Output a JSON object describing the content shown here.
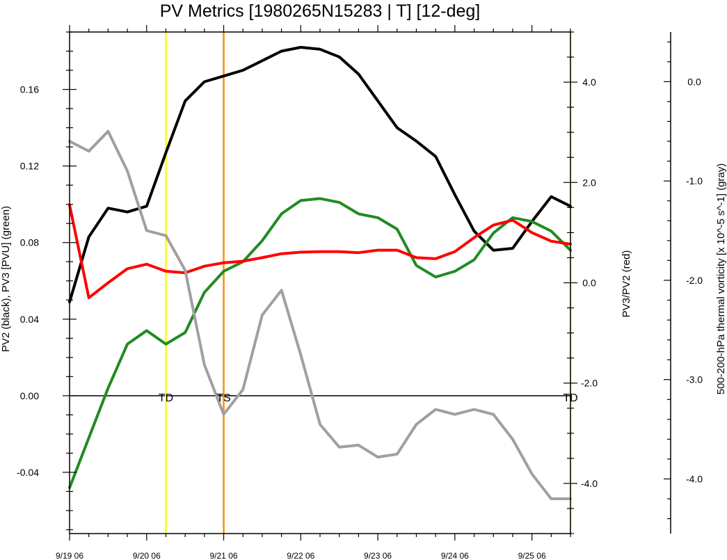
{
  "chart_data": {
    "type": "line",
    "title": "PV Metrics [1980265N15283 | T] [12-deg]",
    "ylabel_left": "PV2 (black), PV3 [PVU] (green)",
    "ylabel_right": "PV3/PV2 (red)",
    "ylabel_far_right": "500-200-hPa thermal vorticity [x 10^-5 s^-1] (gray)",
    "x_tick_labels": [
      "9/19 06",
      "9/20 06",
      "9/21 06",
      "9/22 06",
      "9/23 06",
      "9/24 06",
      "9/25 06"
    ],
    "x_tick_index": [
      0,
      4,
      8,
      12,
      16,
      20,
      24
    ],
    "xlim": [
      0,
      26
    ],
    "ylim_left": [
      -0.072,
      0.19
    ],
    "ylim_right": [
      -5.0,
      5.0
    ],
    "ylim_far_right": [
      -4.55,
      0.5
    ],
    "left_ticks": [
      {
        "v": -0.04,
        "t": "-0.04"
      },
      {
        "v": 0.0,
        "t": "0.00"
      },
      {
        "v": 0.04,
        "t": "0.04"
      },
      {
        "v": 0.08,
        "t": "0.08"
      },
      {
        "v": 0.12,
        "t": "0.12"
      },
      {
        "v": 0.16,
        "t": "0.16"
      }
    ],
    "right_ticks": [
      {
        "v": -4.0,
        "t": "-4.0"
      },
      {
        "v": -2.0,
        "t": "-2.0"
      },
      {
        "v": 0.0,
        "t": "0.0"
      },
      {
        "v": 2.0,
        "t": "2.0"
      },
      {
        "v": 4.0,
        "t": "4.0"
      }
    ],
    "far_right_ticks": [
      {
        "v": -4.0,
        "t": "-4.0"
      },
      {
        "v": -3.0,
        "t": "-3.0"
      },
      {
        "v": -2.0,
        "t": "-2.0"
      },
      {
        "v": -1.0,
        "t": "-1.0"
      },
      {
        "v": 0.0,
        "t": "0.0"
      }
    ],
    "vertical_markers": [
      {
        "x": 5,
        "color": "#ffff00"
      },
      {
        "x": 8,
        "color": "#ff8c00"
      },
      {
        "x": 26,
        "color": "#cccc00"
      }
    ],
    "stage_labels": [
      {
        "x": 5,
        "text": "TD"
      },
      {
        "x": 8,
        "text": "TS"
      },
      {
        "x": 26,
        "text": "TD"
      }
    ],
    "zero_line": 0.0,
    "series": [
      {
        "color": "#000000",
        "axis": "left",
        "values": [
          0.049,
          0.083,
          0.098,
          0.096,
          0.099,
          0.127,
          0.154,
          0.164,
          0.167,
          0.17,
          0.175,
          0.18,
          0.182,
          0.181,
          0.177,
          0.168,
          0.154,
          0.14,
          0.133,
          0.125,
          0.105,
          0.086,
          0.076,
          0.077,
          0.091,
          0.104,
          0.099
        ]
      },
      {
        "color": "#228b22",
        "axis": "left",
        "values": [
          -0.048,
          -0.022,
          0.004,
          0.027,
          0.034,
          0.027,
          0.033,
          0.054,
          0.065,
          0.07,
          0.081,
          0.095,
          0.102,
          0.103,
          0.101,
          0.095,
          0.093,
          0.087,
          0.068,
          0.062,
          0.065,
          0.071,
          0.085,
          0.093,
          0.091,
          0.086,
          0.076
        ]
      },
      {
        "color": "#ff0000",
        "axis": "right",
        "values": [
          1.55,
          -0.3,
          0.0,
          0.28,
          0.37,
          0.23,
          0.2,
          0.33,
          0.4,
          0.43,
          0.5,
          0.58,
          0.61,
          0.62,
          0.62,
          0.6,
          0.65,
          0.65,
          0.5,
          0.48,
          0.62,
          0.9,
          1.15,
          1.25,
          1.0,
          0.83,
          0.77
        ]
      },
      {
        "color": "#a0a0a0",
        "axis": "far_right",
        "values": [
          -0.6,
          -0.7,
          -0.5,
          -0.9,
          -1.5,
          -1.55,
          -1.9,
          -2.85,
          -3.35,
          -3.1,
          -2.35,
          -2.1,
          -2.75,
          -3.45,
          -3.68,
          -3.66,
          -3.78,
          -3.75,
          -3.45,
          -3.3,
          -3.35,
          -3.3,
          -3.35,
          -3.6,
          -3.95,
          -4.2,
          -4.2
        ]
      }
    ]
  }
}
